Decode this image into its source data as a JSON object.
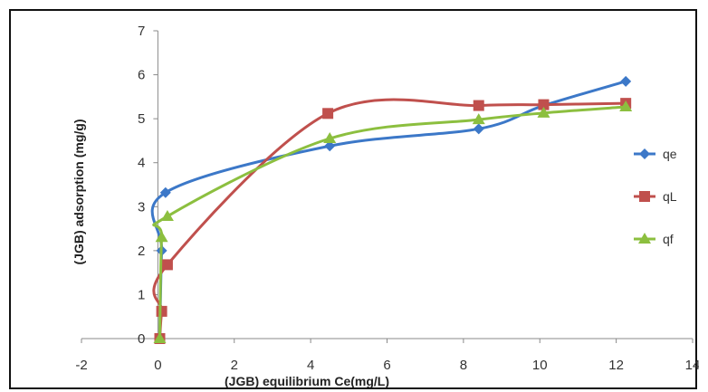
{
  "chart_data": {
    "type": "scatter",
    "title": "",
    "xlabel": "(JGB) equilibrium Ce(mg/L)",
    "ylabel": "(JGB) adsorption (mg/g)",
    "xlim": [
      -2,
      14
    ],
    "ylim": [
      0,
      7
    ],
    "x_ticks": [
      -2,
      0,
      2,
      4,
      6,
      8,
      10,
      12,
      14
    ],
    "y_ticks": [
      0,
      1,
      2,
      3,
      4,
      5,
      6,
      7
    ],
    "grid": false,
    "legend_position": "right",
    "smooth_lines": true,
    "series": [
      {
        "name": "qe",
        "color": "#3c78c8",
        "marker": "diamond",
        "points": [
          [
            0.05,
            0.0
          ],
          [
            0.1,
            2.0
          ],
          [
            0.2,
            3.32
          ],
          [
            4.5,
            4.38
          ],
          [
            8.4,
            4.77
          ],
          [
            10.1,
            5.3
          ],
          [
            12.25,
            5.85
          ]
        ]
      },
      {
        "name": "qL",
        "color": "#c0504d",
        "marker": "square",
        "points": [
          [
            0.05,
            0.0
          ],
          [
            0.1,
            0.62
          ],
          [
            0.25,
            1.68
          ],
          [
            4.45,
            5.12
          ],
          [
            8.4,
            5.3
          ],
          [
            10.1,
            5.32
          ],
          [
            12.25,
            5.35
          ]
        ]
      },
      {
        "name": "qf",
        "color": "#8cbf3f",
        "marker": "triangle",
        "points": [
          [
            0.05,
            0.0
          ],
          [
            0.1,
            2.3
          ],
          [
            0.25,
            2.78
          ],
          [
            4.5,
            4.55
          ],
          [
            8.4,
            4.98
          ],
          [
            10.1,
            5.13
          ],
          [
            12.25,
            5.27
          ]
        ]
      }
    ]
  }
}
